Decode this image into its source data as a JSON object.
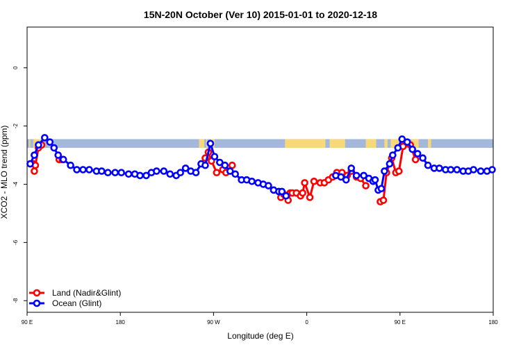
{
  "chart_data": {
    "type": "line",
    "title": "15N-20N October (Ver 10)   2015-01-01 to 2020-12-18",
    "xlabel": "Longitude (deg E)",
    "ylabel": "XCO2 - MLO trend (ppm)",
    "xlim": [
      90,
      540
    ],
    "ylim": [
      -8.4,
      1.4
    ],
    "x_ticks": [
      {
        "value": 90,
        "label": "90 E"
      },
      {
        "value": 180,
        "label": "180"
      },
      {
        "value": 270,
        "label": "90 W"
      },
      {
        "value": 360,
        "label": "0"
      },
      {
        "value": 450,
        "label": "90 E"
      },
      {
        "value": 540,
        "label": "180"
      }
    ],
    "y_ticks": [
      {
        "value": 0,
        "label": "0"
      },
      {
        "value": -2,
        "label": "-2"
      },
      {
        "value": -4,
        "label": "-4"
      },
      {
        "value": -6,
        "label": "-6"
      },
      {
        "value": -8,
        "label": "-8"
      }
    ],
    "land_ocean_band": {
      "y_range": [
        -2.75,
        -2.45
      ],
      "ocean_color": "#a3b8da",
      "land_color": "#f7d97c",
      "land_segments": [
        [
          92,
          93
        ],
        [
          96,
          105
        ],
        [
          256,
          261
        ],
        [
          263,
          264
        ],
        [
          267,
          271
        ],
        [
          339,
          378
        ],
        [
          382,
          397
        ],
        [
          417,
          427
        ],
        [
          435,
          438
        ],
        [
          441,
          449
        ],
        [
          461,
          468
        ],
        [
          477,
          480
        ]
      ]
    },
    "legend": {
      "position": "bottom-left"
    },
    "series": [
      {
        "name": "Land (Nadir&Glint)",
        "color": "#ff0000",
        "x": [
          96,
          97,
          98,
          101,
          104,
          121,
          124,
          262,
          265,
          268,
          273,
          279,
          282,
          288,
          335,
          338,
          342,
          344,
          346,
          350,
          354,
          356,
          358,
          363,
          367,
          373,
          377,
          381,
          385,
          389,
          394,
          399,
          403,
          408,
          412,
          417,
          431,
          434,
          437,
          442,
          446,
          449,
          453,
          460,
          465
        ],
        "values": [
          -3.3,
          -3.55,
          -3.35,
          -2.75,
          -2.65,
          -3.15,
          -3.15,
          -3.1,
          -2.9,
          -3.2,
          -3.6,
          -3.5,
          -3.6,
          -3.35,
          -4.45,
          -4.35,
          -4.55,
          -4.3,
          -4.3,
          -4.3,
          -4.4,
          -4.3,
          -3.95,
          -4.45,
          -3.9,
          -3.95,
          -3.95,
          -3.85,
          -3.75,
          -3.6,
          -3.6,
          -3.7,
          -3.55,
          -3.75,
          -3.8,
          -4.05,
          -4.6,
          -4.55,
          -3.6,
          -3.1,
          -3.6,
          -3.55,
          -2.7,
          -2.65,
          -3.15
        ]
      },
      {
        "name": "Ocean (Glint)",
        "color": "#0000ff",
        "x": [
          93,
          97,
          101,
          107,
          112,
          116,
          120,
          125,
          132,
          138,
          144,
          150,
          157,
          162,
          168,
          175,
          181,
          188,
          194,
          199,
          205,
          210,
          215,
          222,
          228,
          234,
          238,
          243,
          248,
          253,
          258,
          262,
          267,
          271,
          276,
          281,
          286,
          291,
          297,
          302,
          307,
          313,
          318,
          323,
          328,
          333,
          336,
          340,
          388,
          393,
          398,
          403,
          408,
          415,
          420,
          424,
          426,
          429,
          432,
          435,
          440,
          443,
          448,
          452,
          457,
          462,
          467,
          472,
          477,
          483,
          488,
          494,
          499,
          505,
          511,
          516,
          521,
          528,
          534,
          539
        ],
        "values": [
          -3.3,
          -3.0,
          -2.65,
          -2.4,
          -2.55,
          -2.75,
          -3.0,
          -3.15,
          -3.35,
          -3.5,
          -3.5,
          -3.5,
          -3.55,
          -3.55,
          -3.6,
          -3.6,
          -3.6,
          -3.65,
          -3.65,
          -3.7,
          -3.7,
          -3.6,
          -3.55,
          -3.55,
          -3.65,
          -3.7,
          -3.6,
          -3.45,
          -3.55,
          -3.6,
          -3.3,
          -3.35,
          -2.6,
          -3.05,
          -3.25,
          -3.35,
          -3.55,
          -3.65,
          -3.85,
          -3.85,
          -3.9,
          -3.95,
          -4.0,
          -4.05,
          -4.2,
          -4.25,
          -4.25,
          -4.4,
          -3.7,
          -3.75,
          -3.85,
          -3.45,
          -3.7,
          -3.7,
          -3.8,
          -3.9,
          -3.85,
          -4.2,
          -4.15,
          -3.55,
          -3.3,
          -3.0,
          -2.75,
          -2.45,
          -2.55,
          -2.8,
          -2.95,
          -3.1,
          -3.35,
          -3.45,
          -3.45,
          -3.5,
          -3.5,
          -3.5,
          -3.55,
          -3.55,
          -3.5,
          -3.55,
          -3.55,
          -3.5
        ]
      }
    ]
  }
}
